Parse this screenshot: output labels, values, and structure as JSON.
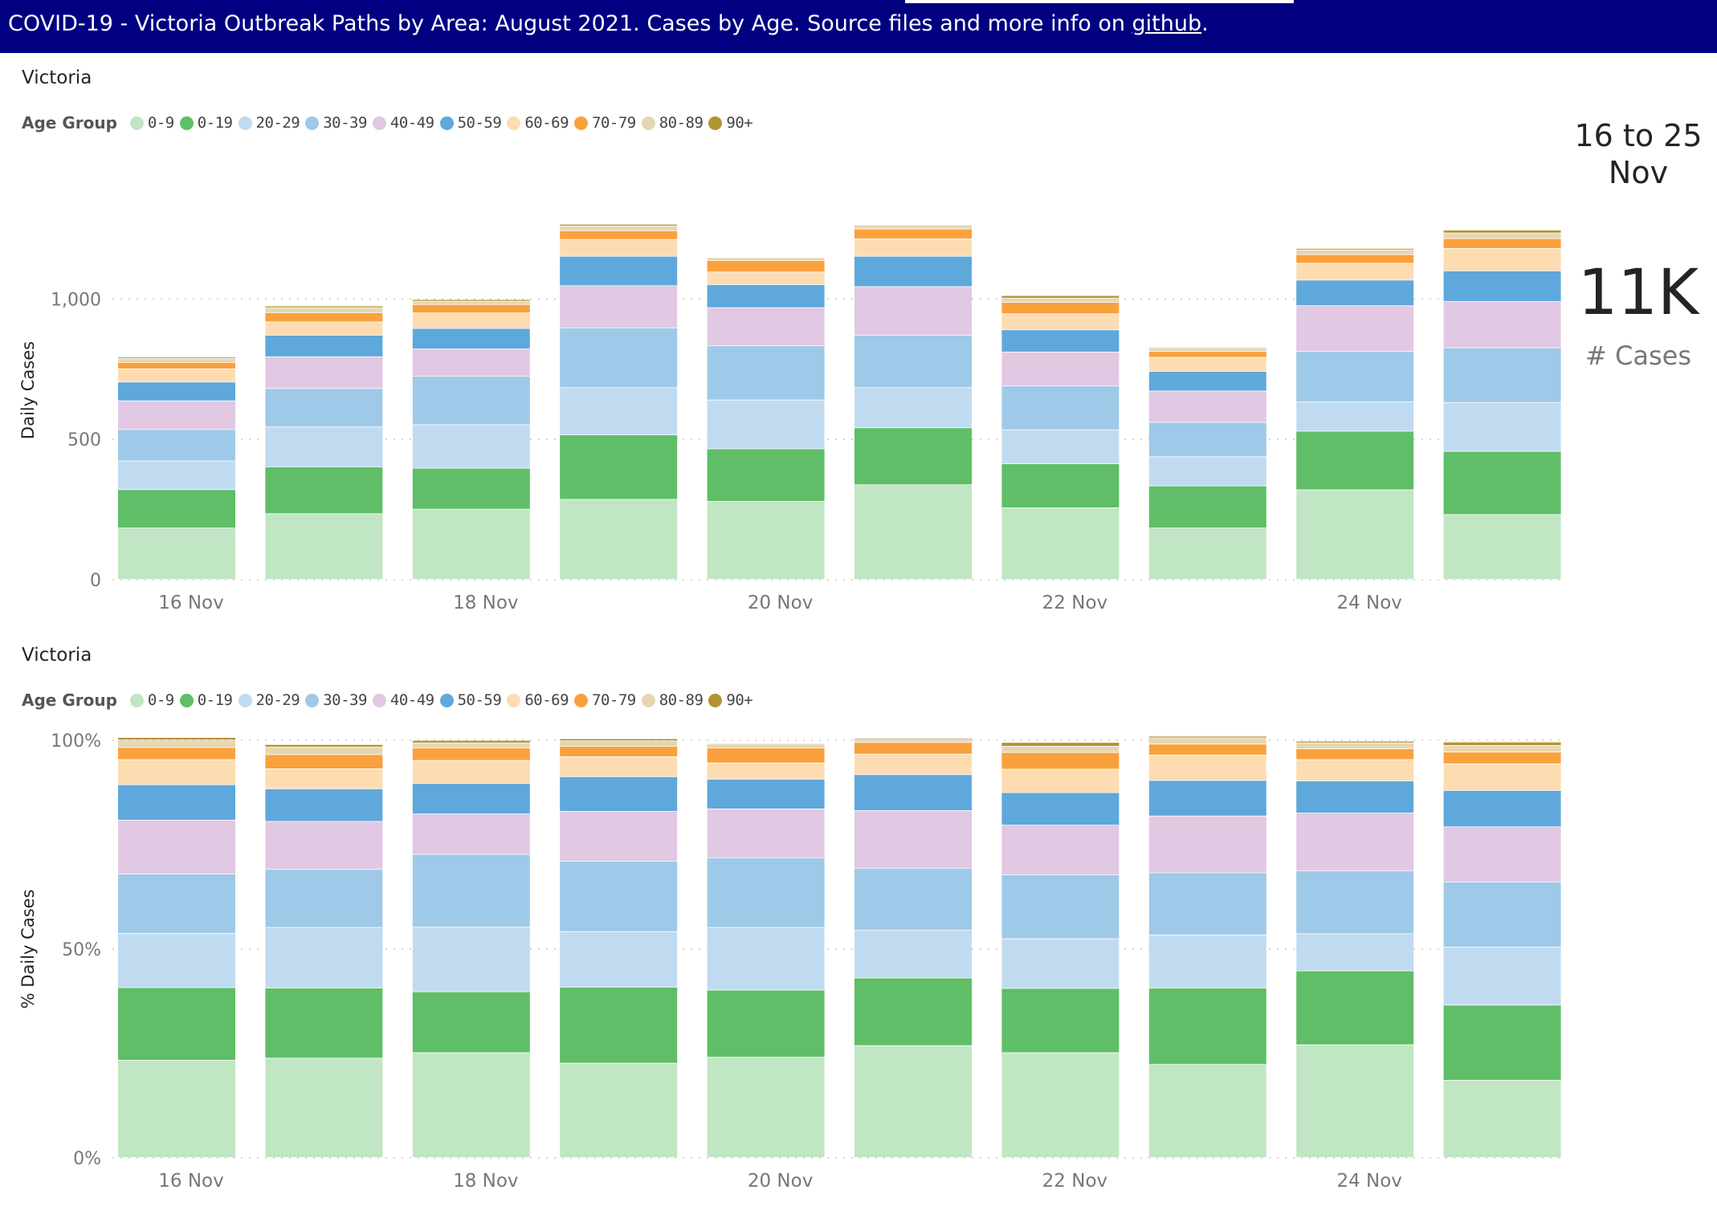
{
  "header": {
    "title_text": "COVID-19  - Victoria Outbreak Paths by Area: August 2021.  Cases by Age. Source files and more info on ",
    "link_text": "github",
    "title_suffix": "."
  },
  "kpi": {
    "date_range_line1": "16 to 25",
    "date_range_line2": "Nov",
    "value": "11K",
    "label": "# Cases"
  },
  "legend": {
    "title": "Age Group",
    "items": [
      {
        "label": "0-9",
        "color": "#c1e6c3"
      },
      {
        "label": "0-19",
        "color": "#5fbe67"
      },
      {
        "label": "20-29",
        "color": "#c0dbf0"
      },
      {
        "label": "30-39",
        "color": "#9fc9e8"
      },
      {
        "label": "40-49",
        "color": "#e1c8e3"
      },
      {
        "label": "50-59",
        "color": "#5ea8dc"
      },
      {
        "label": "60-69",
        "color": "#fddcb2"
      },
      {
        "label": "70-79",
        "color": "#f9a13d"
      },
      {
        "label": "80-89",
        "color": "#e6d6b2"
      },
      {
        "label": "90+",
        "color": "#b09434"
      }
    ]
  },
  "chart_data": [
    {
      "type": "bar",
      "stacked": true,
      "area_label": "Victoria",
      "ylabel": "Daily Cases",
      "ylim": [
        0,
        1350
      ],
      "yticks": [
        0,
        500,
        1000
      ],
      "ytick_labels": [
        "0",
        "500",
        "1,000"
      ],
      "xtick_labels": [
        "16 Nov",
        "18 Nov",
        "20 Nov",
        "22 Nov",
        "24 Nov"
      ],
      "xtick_indices": [
        0,
        2,
        4,
        6,
        8
      ],
      "categories": [
        "16 Nov",
        "17 Nov",
        "18 Nov",
        "19 Nov",
        "20 Nov",
        "21 Nov",
        "22 Nov",
        "23 Nov",
        "24 Nov",
        "25 Nov"
      ],
      "series": [
        {
          "name": "0-9",
          "values": [
            183,
            234,
            250,
            285,
            278,
            337,
            255,
            183,
            319,
            231
          ]
        },
        {
          "name": "0-19",
          "values": [
            137,
            167,
            146,
            230,
            187,
            203,
            157,
            150,
            209,
            225
          ]
        },
        {
          "name": "20-29",
          "values": [
            102,
            142,
            155,
            168,
            174,
            143,
            121,
            104,
            105,
            174
          ]
        },
        {
          "name": "30-39",
          "values": [
            112,
            137,
            173,
            213,
            193,
            187,
            156,
            122,
            179,
            195
          ]
        },
        {
          "name": "40-49",
          "values": [
            102,
            113,
            97,
            150,
            136,
            173,
            121,
            112,
            163,
            165
          ]
        },
        {
          "name": "50-59",
          "values": [
            67,
            77,
            73,
            105,
            82,
            108,
            79,
            70,
            91,
            109
          ]
        },
        {
          "name": "60-69",
          "values": [
            47,
            47,
            55,
            60,
            45,
            62,
            57,
            50,
            60,
            80
          ]
        },
        {
          "name": "70-79",
          "values": [
            23,
            33,
            30,
            31,
            41,
            35,
            41,
            21,
            31,
            35
          ]
        },
        {
          "name": "80-89",
          "values": [
            14,
            18,
            12,
            17,
            10,
            9,
            15,
            12,
            17,
            20
          ]
        },
        {
          "name": "90+",
          "values": [
            5,
            6,
            6,
            6,
            2,
            4,
            9,
            3,
            5,
            10
          ]
        }
      ]
    },
    {
      "type": "bar",
      "stacked": true,
      "percent": true,
      "area_label": "Victoria",
      "ylabel": "% Daily Cases",
      "ylim": [
        0,
        100
      ],
      "yticks": [
        0,
        50,
        100
      ],
      "ytick_labels": [
        "0%",
        "50%",
        "100%"
      ],
      "xtick_labels": [
        "16 Nov",
        "18 Nov",
        "20 Nov",
        "22 Nov",
        "24 Nov"
      ],
      "xtick_indices": [
        0,
        2,
        4,
        6,
        8
      ],
      "categories": [
        "16 Nov",
        "17 Nov",
        "18 Nov",
        "19 Nov",
        "20 Nov",
        "21 Nov",
        "22 Nov",
        "23 Nov",
        "24 Nov",
        "25 Nov"
      ],
      "series": [
        {
          "name": "0-9",
          "values": [
            23.3,
            23.8,
            25.1,
            22.6,
            24.0,
            26.8,
            25.1,
            22.3,
            27.0,
            18.5
          ]
        },
        {
          "name": "0-19",
          "values": [
            17.4,
            16.8,
            14.6,
            18.2,
            16.1,
            16.2,
            15.4,
            18.3,
            17.7,
            18.0
          ]
        },
        {
          "name": "20-29",
          "values": [
            13.0,
            14.5,
            15.5,
            13.3,
            15.0,
            11.4,
            11.9,
            12.7,
            8.9,
            13.9
          ]
        },
        {
          "name": "30-39",
          "values": [
            14.2,
            13.9,
            17.4,
            16.9,
            16.7,
            14.9,
            15.3,
            14.9,
            15.1,
            15.6
          ]
        },
        {
          "name": "40-49",
          "values": [
            12.9,
            11.5,
            9.7,
            11.9,
            11.7,
            13.8,
            11.9,
            13.6,
            13.8,
            13.2
          ]
        },
        {
          "name": "50-59",
          "values": [
            8.5,
            7.8,
            7.3,
            8.3,
            7.1,
            8.6,
            7.8,
            8.5,
            7.7,
            8.7
          ]
        },
        {
          "name": "60-69",
          "values": [
            6.0,
            4.8,
            5.5,
            4.8,
            3.9,
            4.9,
            5.6,
            6.1,
            5.1,
            6.4
          ]
        },
        {
          "name": "70-79",
          "values": [
            2.9,
            3.4,
            3.0,
            2.5,
            3.6,
            2.8,
            4.0,
            2.6,
            2.6,
            2.8
          ]
        },
        {
          "name": "80-89",
          "values": [
            1.8,
            1.8,
            1.2,
            1.3,
            0.9,
            0.7,
            1.5,
            1.5,
            1.4,
            1.6
          ]
        },
        {
          "name": "90+",
          "values": [
            0.6,
            0.6,
            0.6,
            0.5,
            0.2,
            0.3,
            0.9,
            0.4,
            0.4,
            0.8
          ]
        }
      ]
    }
  ]
}
